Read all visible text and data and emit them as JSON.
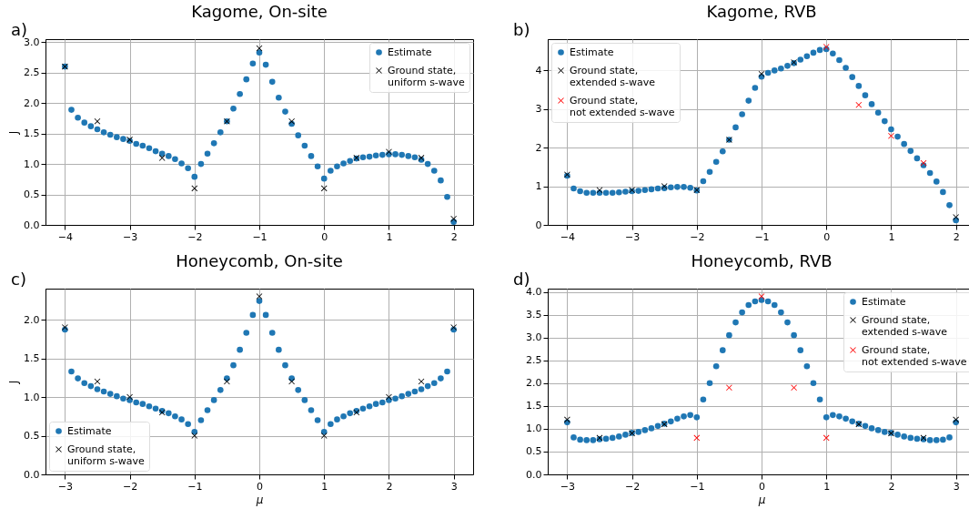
{
  "chart_data": [
    {
      "type": "scatter",
      "title": "Kagome, On-site",
      "annotations": [
        "a)"
      ],
      "ylabel": "J",
      "xlim": [
        -4.3,
        2.3
      ],
      "xticks": [
        -4,
        -3,
        -2,
        -1,
        0,
        1,
        2
      ],
      "ylim": [
        0,
        3.05
      ],
      "yticks": [
        {
          "value": 0,
          "label": "0.0"
        },
        {
          "value": 0.5,
          "label": "0.5"
        },
        {
          "value": 1,
          "label": "1.0"
        },
        {
          "value": 1.5,
          "label": "1.5"
        },
        {
          "value": 2,
          "label": "2.0"
        },
        {
          "value": 2.5,
          "label": "2.5"
        },
        {
          "value": 3,
          "label": "3.0"
        }
      ],
      "grid": true,
      "legend": "top right",
      "series": [
        {
          "name": "Estimate",
          "color": "#1f77b4",
          "marker": "circle",
          "x": [
            -4,
            -3.9,
            -3.8,
            -3.7,
            -3.6,
            -3.5,
            -3.4,
            -3.3,
            -3.2,
            -3.1,
            -3,
            -2.9,
            -2.8,
            -2.7,
            -2.6,
            -2.5,
            -2.4,
            -2.3,
            -2.2,
            -2.1,
            -2,
            -1.9,
            -1.8,
            -1.7,
            -1.6,
            -1.5,
            -1.4,
            -1.3,
            -1.2,
            -1.1,
            -1,
            -0.9,
            -0.8,
            -0.7,
            -0.6,
            -0.5,
            -0.4,
            -0.3,
            -0.2,
            -0.1,
            0,
            0.1,
            0.2,
            0.3,
            0.4,
            0.5,
            0.6,
            0.7,
            0.8,
            0.9,
            1,
            1.1,
            1.2,
            1.3,
            1.4,
            1.5,
            1.6,
            1.7,
            1.8,
            1.9,
            2
          ],
          "values": [
            2.6,
            1.89,
            1.76,
            1.68,
            1.62,
            1.57,
            1.52,
            1.48,
            1.44,
            1.41,
            1.38,
            1.33,
            1.3,
            1.26,
            1.21,
            1.17,
            1.13,
            1.08,
            1.01,
            0.93,
            0.79,
            1.0,
            1.17,
            1.34,
            1.52,
            1.7,
            1.91,
            2.15,
            2.39,
            2.65,
            2.83,
            2.63,
            2.35,
            2.09,
            1.86,
            1.66,
            1.47,
            1.3,
            1.13,
            0.96,
            0.76,
            0.89,
            0.96,
            1.01,
            1.05,
            1.09,
            1.11,
            1.12,
            1.14,
            1.15,
            1.16,
            1.16,
            1.15,
            1.13,
            1.11,
            1.07,
            1.0,
            0.89,
            0.73,
            0.46,
            0.05
          ]
        },
        {
          "name": "Ground state, uniform s-wave",
          "color": "#000000",
          "marker": "cross",
          "x": [
            -4,
            -3.5,
            -3,
            -2.5,
            -2,
            -1.5,
            -1,
            -0.5,
            0,
            0.5,
            1,
            1.5,
            2
          ],
          "values": [
            2.6,
            1.7,
            1.4,
            1.1,
            0.6,
            1.7,
            2.9,
            1.7,
            0.6,
            1.1,
            1.2,
            1.1,
            0.1
          ]
        }
      ]
    },
    {
      "type": "scatter",
      "title": "Kagome, RVB",
      "annotations": [
        "b)"
      ],
      "xlim": [
        -4.3,
        2.3
      ],
      "xticks": [
        -4,
        -3,
        -2,
        -1,
        0,
        1,
        2
      ],
      "ylim": [
        0,
        4.8
      ],
      "yticks": [
        0,
        1,
        2,
        3,
        4
      ],
      "grid": true,
      "legend": "top left",
      "series": [
        {
          "name": "Estimate",
          "color": "#1f77b4",
          "marker": "circle",
          "x": [
            -4,
            -3.9,
            -3.8,
            -3.7,
            -3.6,
            -3.5,
            -3.4,
            -3.3,
            -3.2,
            -3.1,
            -3,
            -2.9,
            -2.8,
            -2.7,
            -2.6,
            -2.5,
            -2.4,
            -2.3,
            -2.2,
            -2.1,
            -2,
            -1.9,
            -1.8,
            -1.7,
            -1.6,
            -1.5,
            -1.4,
            -1.3,
            -1.2,
            -1.1,
            -1,
            -0.9,
            -0.8,
            -0.7,
            -0.6,
            -0.5,
            -0.4,
            -0.3,
            -0.2,
            -0.1,
            0,
            0.1,
            0.2,
            0.3,
            0.4,
            0.5,
            0.6,
            0.7,
            0.8,
            0.9,
            1,
            1.1,
            1.2,
            1.3,
            1.4,
            1.5,
            1.6,
            1.7,
            1.8,
            1.9,
            2
          ],
          "values": [
            1.27,
            0.94,
            0.87,
            0.83,
            0.83,
            0.83,
            0.83,
            0.83,
            0.84,
            0.86,
            0.87,
            0.88,
            0.9,
            0.92,
            0.94,
            0.95,
            0.97,
            0.98,
            0.98,
            0.96,
            0.89,
            1.13,
            1.37,
            1.63,
            1.9,
            2.2,
            2.52,
            2.86,
            3.21,
            3.54,
            3.83,
            3.93,
            3.99,
            4.04,
            4.11,
            4.18,
            4.27,
            4.36,
            4.45,
            4.52,
            4.54,
            4.43,
            4.26,
            4.06,
            3.82,
            3.59,
            3.35,
            3.12,
            2.9,
            2.68,
            2.47,
            2.28,
            2.09,
            1.91,
            1.72,
            1.54,
            1.34,
            1.12,
            0.85,
            0.51,
            0.12
          ]
        },
        {
          "name": "Ground state, extended s-wave",
          "color": "#000000",
          "marker": "cross",
          "x": [
            -4,
            -3.5,
            -3,
            -2.5,
            -2,
            -1.5,
            -1,
            -0.5,
            2
          ],
          "values": [
            1.3,
            0.9,
            0.9,
            1.0,
            0.9,
            2.2,
            3.9,
            4.2,
            0.2
          ]
        },
        {
          "name": "Ground state, not extended s-wave",
          "color": "#ff0000",
          "marker": "cross",
          "x": [
            0,
            0.5,
            1,
            1.5
          ],
          "values": [
            4.6,
            3.1,
            2.3,
            1.6
          ]
        }
      ]
    },
    {
      "type": "scatter",
      "title": "Honeycomb, On-site",
      "annotations": [
        "c)"
      ],
      "xlabel": "μ",
      "ylabel": "J",
      "xlim": [
        -3.3,
        3.3
      ],
      "xticks": [
        -3,
        -2,
        -1,
        0,
        1,
        2,
        3
      ],
      "ylim": [
        0,
        2.4
      ],
      "yticks": [
        {
          "value": 0,
          "label": "0.0"
        },
        {
          "value": 0.5,
          "label": "0.5"
        },
        {
          "value": 1,
          "label": "1.0"
        },
        {
          "value": 1.5,
          "label": "1.5"
        },
        {
          "value": 2,
          "label": "2.0"
        }
      ],
      "grid": true,
      "legend": "bottom left",
      "series": [
        {
          "name": "Estimate",
          "color": "#1f77b4",
          "marker": "circle",
          "x": [
            -3,
            -2.9,
            -2.8,
            -2.7,
            -2.6,
            -2.5,
            -2.4,
            -2.3,
            -2.2,
            -2.1,
            -2,
            -1.9,
            -1.8,
            -1.7,
            -1.6,
            -1.5,
            -1.4,
            -1.3,
            -1.2,
            -1.1,
            -1,
            -0.9,
            -0.8,
            -0.7,
            -0.6,
            -0.5,
            -0.4,
            -0.3,
            -0.2,
            -0.1,
            0,
            0.1,
            0.2,
            0.3,
            0.4,
            0.5,
            0.6,
            0.7,
            0.8,
            0.9,
            1,
            1.1,
            1.2,
            1.3,
            1.4,
            1.5,
            1.6,
            1.7,
            1.8,
            1.9,
            2,
            2.1,
            2.2,
            2.3,
            2.4,
            2.5,
            2.6,
            2.7,
            2.8,
            2.9,
            3
          ],
          "values": [
            1.87,
            1.33,
            1.24,
            1.18,
            1.14,
            1.1,
            1.07,
            1.04,
            1.01,
            0.98,
            0.96,
            0.93,
            0.91,
            0.88,
            0.85,
            0.82,
            0.79,
            0.75,
            0.71,
            0.65,
            0.55,
            0.7,
            0.83,
            0.96,
            1.09,
            1.24,
            1.41,
            1.61,
            1.83,
            2.06,
            2.24,
            2.06,
            1.83,
            1.61,
            1.41,
            1.24,
            1.09,
            0.96,
            0.83,
            0.7,
            0.55,
            0.65,
            0.71,
            0.75,
            0.79,
            0.82,
            0.85,
            0.88,
            0.91,
            0.93,
            0.96,
            0.98,
            1.01,
            1.04,
            1.07,
            1.1,
            1.14,
            1.18,
            1.24,
            1.33,
            1.87
          ]
        },
        {
          "name": "Ground state, uniform s-wave",
          "color": "#000000",
          "marker": "cross",
          "x": [
            -3,
            -2.5,
            -2,
            -1.5,
            -1,
            -0.5,
            0,
            0.5,
            1,
            1.5,
            2,
            2.5,
            3
          ],
          "values": [
            1.9,
            1.2,
            1.0,
            0.8,
            0.5,
            1.2,
            2.3,
            1.2,
            0.5,
            0.8,
            1.0,
            1.2,
            1.9
          ]
        }
      ]
    },
    {
      "type": "scatter",
      "title": "Honeycomb, RVB",
      "annotations": [
        "d)"
      ],
      "xlabel": "μ",
      "xlim": [
        -3.3,
        3.3
      ],
      "xticks": [
        -3,
        -2,
        -1,
        0,
        1,
        2,
        3
      ],
      "ylim": [
        0,
        4.07
      ],
      "yticks": [
        {
          "value": 0,
          "label": "0.0"
        },
        {
          "value": 0.5,
          "label": "0.5"
        },
        {
          "value": 1,
          "label": "1.0"
        },
        {
          "value": 1.5,
          "label": "1.5"
        },
        {
          "value": 2,
          "label": "2.0"
        },
        {
          "value": 2.5,
          "label": "2.5"
        },
        {
          "value": 3,
          "label": "3.0"
        },
        {
          "value": 3.5,
          "label": "3.5"
        },
        {
          "value": 4,
          "label": "4.0"
        }
      ],
      "grid": true,
      "legend": "top right",
      "series": [
        {
          "name": "Estimate",
          "color": "#1f77b4",
          "marker": "circle",
          "x": [
            -3,
            -2.9,
            -2.8,
            -2.7,
            -2.6,
            -2.5,
            -2.4,
            -2.3,
            -2.2,
            -2.1,
            -2,
            -1.9,
            -1.8,
            -1.7,
            -1.6,
            -1.5,
            -1.4,
            -1.3,
            -1.2,
            -1.1,
            -1,
            -0.9,
            -0.8,
            -0.7,
            -0.6,
            -0.5,
            -0.4,
            -0.3,
            -0.2,
            -0.1,
            0,
            0.1,
            0.2,
            0.3,
            0.4,
            0.5,
            0.6,
            0.7,
            0.8,
            0.9,
            1,
            1.1,
            1.2,
            1.3,
            1.4,
            1.5,
            1.6,
            1.7,
            1.8,
            1.9,
            2,
            2.1,
            2.2,
            2.3,
            2.4,
            2.5,
            2.6,
            2.7,
            2.8,
            2.9,
            3
          ],
          "values": [
            1.14,
            0.81,
            0.76,
            0.75,
            0.75,
            0.77,
            0.78,
            0.8,
            0.83,
            0.87,
            0.91,
            0.93,
            0.97,
            1.01,
            1.06,
            1.11,
            1.16,
            1.22,
            1.27,
            1.3,
            1.25,
            1.64,
            2.0,
            2.37,
            2.72,
            3.05,
            3.33,
            3.55,
            3.71,
            3.79,
            3.82,
            3.79,
            3.71,
            3.55,
            3.33,
            3.05,
            2.72,
            2.37,
            2.0,
            1.64,
            1.25,
            1.3,
            1.27,
            1.22,
            1.16,
            1.11,
            1.06,
            1.01,
            0.97,
            0.93,
            0.91,
            0.87,
            0.83,
            0.8,
            0.78,
            0.77,
            0.75,
            0.75,
            0.76,
            0.81,
            1.14
          ]
        },
        {
          "name": "Ground state, extended s-wave",
          "color": "#000000",
          "marker": "cross",
          "x": [
            -3,
            -2.5,
            -2,
            -1.5,
            1.5,
            2,
            2.5,
            3
          ],
          "values": [
            1.2,
            0.8,
            0.9,
            1.1,
            1.1,
            0.9,
            0.8,
            1.2
          ]
        },
        {
          "name": "Ground state, not extended s-wave",
          "color": "#ff0000",
          "marker": "cross",
          "x": [
            -1,
            -0.5,
            0,
            0.5,
            1
          ],
          "values": [
            0.8,
            1.9,
            3.9,
            1.9,
            0.8
          ]
        }
      ]
    }
  ]
}
